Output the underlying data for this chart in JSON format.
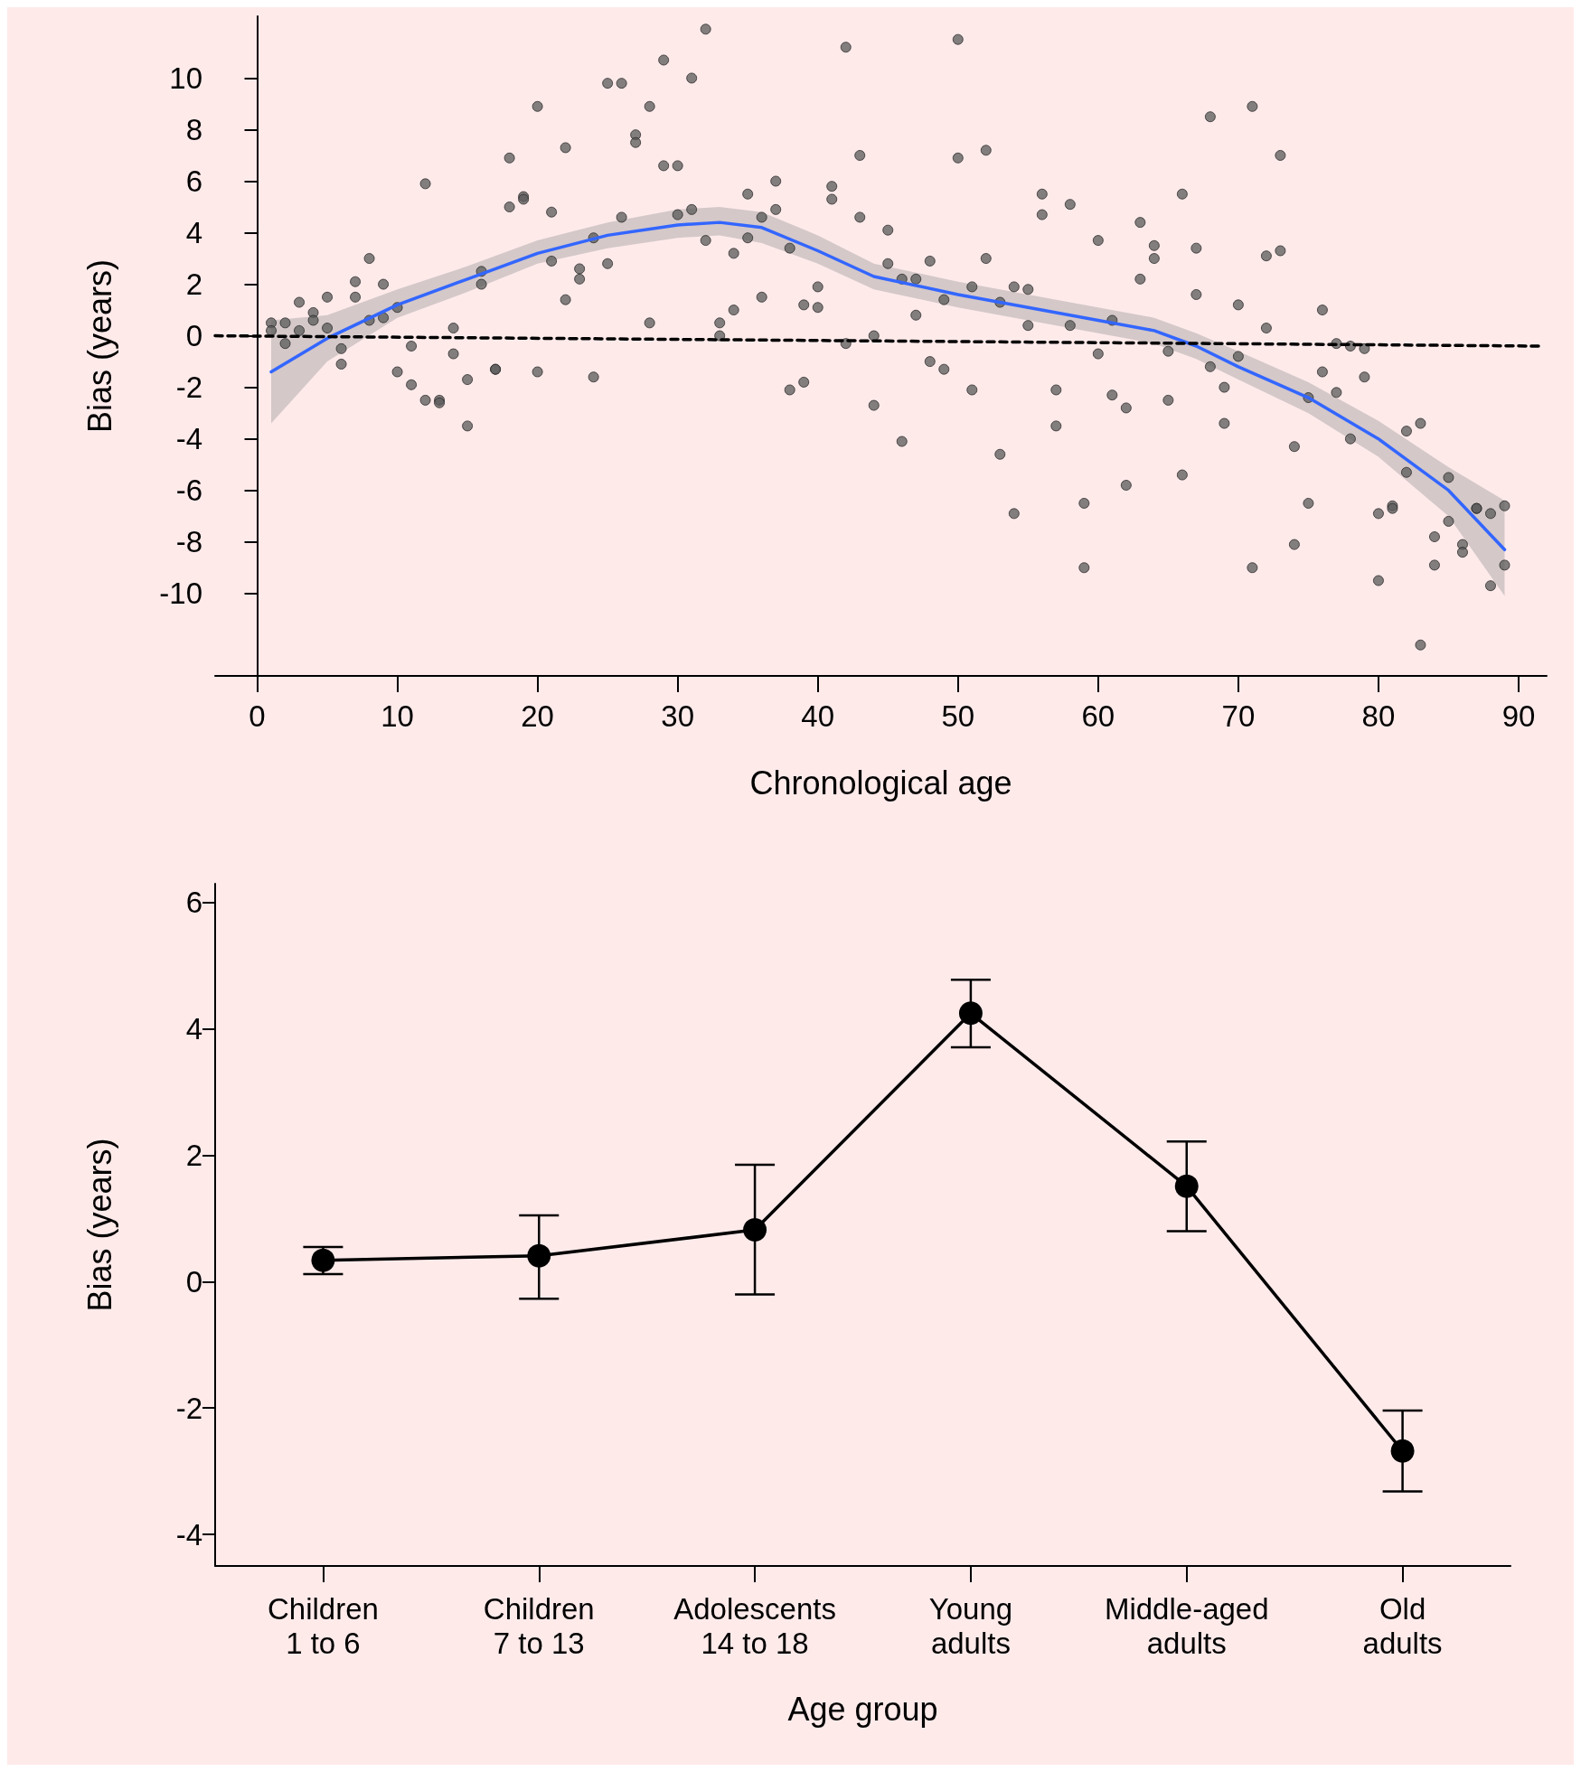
{
  "chart_data": [
    {
      "type": "scatter",
      "xlabel": "Chronological age",
      "ylabel": "Bias (years)",
      "xlim": [
        -3,
        92
      ],
      "ylim": [
        -13.2,
        12.4
      ],
      "xticks": [
        0,
        10,
        20,
        30,
        40,
        50,
        60,
        70,
        80,
        90
      ],
      "yticks": [
        -10,
        -8,
        -6,
        -4,
        -2,
        0,
        2,
        4,
        6,
        8,
        10
      ],
      "grid": false,
      "series": [
        {
          "type": "scatter",
          "color": "#595959",
          "marker": "circle",
          "x": [
            1,
            1,
            2,
            2,
            3,
            3,
            4,
            4,
            5,
            5,
            6,
            6,
            7,
            7,
            8,
            8,
            9,
            9,
            10,
            10,
            11,
            11,
            12,
            12,
            13,
            13,
            14,
            14,
            15,
            15,
            16,
            16,
            17,
            17,
            18,
            18,
            19,
            19,
            20,
            20,
            21,
            21,
            22,
            22,
            23,
            23,
            24,
            24,
            25,
            25,
            26,
            26,
            27,
            27,
            28,
            28,
            29,
            29,
            30,
            30,
            31,
            31,
            32,
            32,
            33,
            33,
            34,
            34,
            35,
            35,
            36,
            36,
            37,
            37,
            38,
            38,
            39,
            39,
            40,
            40,
            41,
            41,
            42,
            42,
            43,
            43,
            44,
            44,
            45,
            45,
            46,
            46,
            47,
            47,
            48,
            48,
            49,
            49,
            50,
            50,
            51,
            51,
            52,
            52,
            53,
            53,
            54,
            54,
            55,
            55,
            56,
            56,
            57,
            57,
            58,
            58,
            59,
            59,
            60,
            60,
            61,
            61,
            62,
            62,
            63,
            63,
            64,
            64,
            65,
            65,
            66,
            66,
            67,
            67,
            68,
            68,
            69,
            69,
            70,
            70,
            71,
            71,
            72,
            72,
            73,
            73,
            74,
            74,
            75,
            75,
            76,
            76,
            77,
            77,
            78,
            78,
            79,
            79,
            80,
            80,
            81,
            81,
            82,
            82,
            83,
            83,
            84,
            84,
            85,
            85,
            86,
            86,
            87,
            87,
            88,
            88,
            89,
            89
          ],
          "values": [
            0.5,
            0.2,
            0.5,
            -0.3,
            1.3,
            0.2,
            0.9,
            0.6,
            1.5,
            0.3,
            -0.5,
            -1.1,
            2.1,
            1.5,
            3.0,
            0.6,
            2.0,
            0.7,
            1.1,
            -1.4,
            -0.4,
            -1.9,
            5.9,
            -2.5,
            -2.5,
            -2.6,
            0.3,
            -0.7,
            -1.7,
            -3.5,
            2.5,
            2.0,
            -1.3,
            -1.3,
            6.9,
            5.0,
            5.4,
            5.3,
            8.9,
            -1.4,
            4.8,
            2.9,
            7.3,
            1.4,
            2.6,
            2.2,
            3.8,
            -1.6,
            9.8,
            2.8,
            9.8,
            4.6,
            7.8,
            7.5,
            8.9,
            0.5,
            10.7,
            6.6,
            6.6,
            4.7,
            10.0,
            4.9,
            11.9,
            3.7,
            0.5,
            0.0,
            3.2,
            1.0,
            5.5,
            3.8,
            4.6,
            1.5,
            6.0,
            4.9,
            3.4,
            -2.1,
            1.2,
            -1.8,
            1.9,
            1.1,
            5.8,
            5.3,
            11.2,
            -0.3,
            7.0,
            4.6,
            0.0,
            -2.7,
            4.1,
            2.8,
            2.2,
            -4.1,
            2.2,
            0.8,
            2.9,
            -1.0,
            1.4,
            -1.3,
            11.5,
            6.9,
            1.9,
            -2.1,
            7.2,
            3.0,
            1.3,
            -4.6,
            1.9,
            -6.9,
            1.8,
            0.4,
            5.5,
            4.7,
            -2.1,
            -3.5,
            5.1,
            0.4,
            -6.5,
            -9.0,
            3.7,
            -0.7,
            0.6,
            -2.3,
            -2.8,
            -5.8,
            4.4,
            2.2,
            3.5,
            3.0,
            -0.6,
            -2.5,
            5.5,
            -5.4,
            3.4,
            1.6,
            8.5,
            -1.2,
            -2.0,
            -3.4,
            1.2,
            -0.8,
            8.9,
            -9.0,
            3.1,
            0.3,
            7.0,
            3.3,
            -4.3,
            -8.1,
            -2.4,
            -6.5,
            1.0,
            -1.4,
            -0.3,
            -2.2,
            -0.4,
            -4.0,
            -0.5,
            -1.6,
            -6.9,
            -9.5,
            -6.6,
            -6.7,
            -3.7,
            -5.3,
            -3.4,
            -12.0,
            -7.8,
            -8.9,
            -5.5,
            -7.2,
            -8.1,
            -8.4,
            -6.7,
            -6.7,
            -6.9,
            -9.7,
            -6.6,
            -8.9
          ]
        },
        {
          "type": "line",
          "color": "#3366ff",
          "marker": "none",
          "x": [
            1,
            5,
            10,
            15,
            20,
            25,
            30,
            33,
            36,
            40,
            44,
            50,
            55,
            60,
            64,
            67,
            70,
            75,
            80,
            85,
            89
          ],
          "values": [
            -1.4,
            -0.1,
            1.2,
            2.2,
            3.2,
            3.9,
            4.3,
            4.4,
            4.2,
            3.3,
            2.3,
            1.6,
            1.1,
            0.6,
            0.2,
            -0.4,
            -1.2,
            -2.4,
            -4.0,
            -6.0,
            -8.3
          ],
          "lower": [
            -3.4,
            -1.0,
            0.7,
            1.7,
            2.8,
            3.4,
            3.8,
            3.9,
            3.6,
            2.8,
            1.8,
            1.1,
            0.6,
            0.1,
            -0.3,
            -0.9,
            -1.7,
            -3.0,
            -4.7,
            -7.0,
            -10.1
          ],
          "upper": [
            0.6,
            0.8,
            1.8,
            2.7,
            3.7,
            4.4,
            4.9,
            5.0,
            4.8,
            3.9,
            2.8,
            2.1,
            1.6,
            1.1,
            0.7,
            0.1,
            -0.6,
            -1.8,
            -3.3,
            -5.1,
            -6.4
          ]
        },
        {
          "type": "line",
          "color": "#000000",
          "marker": "none",
          "line_style": "dashed",
          "x": [
            -3,
            91.5
          ],
          "values": [
            0,
            -0.4
          ]
        }
      ]
    },
    {
      "type": "line",
      "xlabel": "Age group",
      "ylabel": "Bias (years)",
      "categories": [
        "Children\n1 to 6",
        "Children\n7 to 13",
        "Adolescents\n14 to 18",
        "Young\nadults",
        "Middle-aged\nadults",
        "Old\nadults"
      ],
      "ylim": [
        -4.5,
        6.3
      ],
      "yticks": [
        -4,
        -2,
        0,
        2,
        4,
        6
      ],
      "grid": false,
      "marker": "circle",
      "line_style": "solid",
      "color": "#000000",
      "values": [
        0.34,
        0.41,
        0.82,
        4.25,
        1.51,
        -2.68
      ],
      "errors": [
        [
          0.12,
          0.55
        ],
        [
          -0.27,
          1.05
        ],
        [
          -0.2,
          1.85
        ],
        [
          3.71,
          4.78
        ],
        [
          0.8,
          2.22
        ],
        [
          -3.32,
          -2.04
        ]
      ]
    }
  ]
}
